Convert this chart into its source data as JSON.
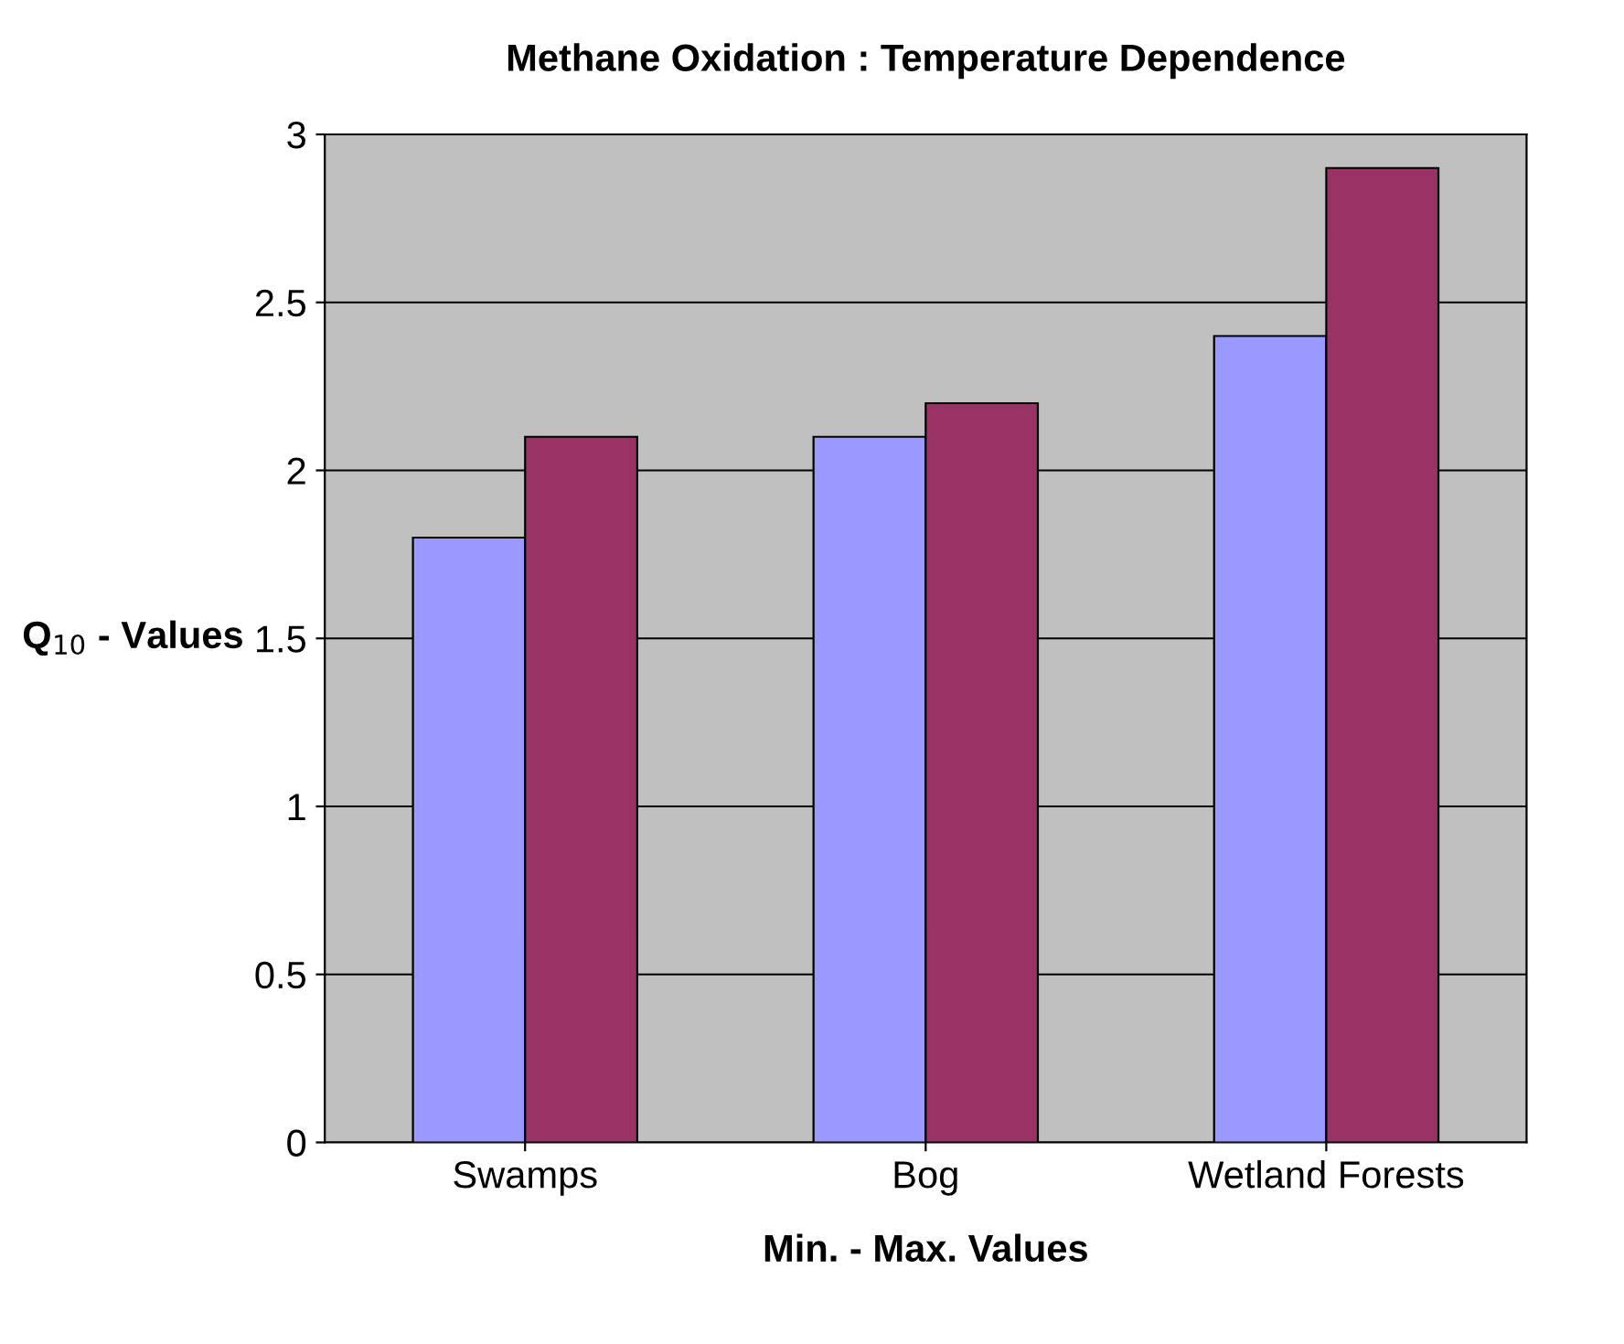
{
  "chart_data": {
    "type": "bar",
    "title": "Methane Oxidation : Temperature Dependence",
    "xlabel": "Min. - Max. Values",
    "ylabel": "Q$_{10}$ - Values",
    "categories": [
      "Swamps",
      "Bog",
      "Wetland Forests"
    ],
    "series": [
      {
        "color": "#9999ff",
        "values": [
          1.8,
          2.1,
          2.4
        ]
      },
      {
        "color": "#993366",
        "values": [
          2.1,
          2.2,
          2.9
        ]
      }
    ],
    "ylim": [
      0,
      3
    ],
    "yticks": [
      0,
      0.5,
      1,
      1.5,
      2,
      2.5,
      3
    ],
    "grid": "y"
  }
}
